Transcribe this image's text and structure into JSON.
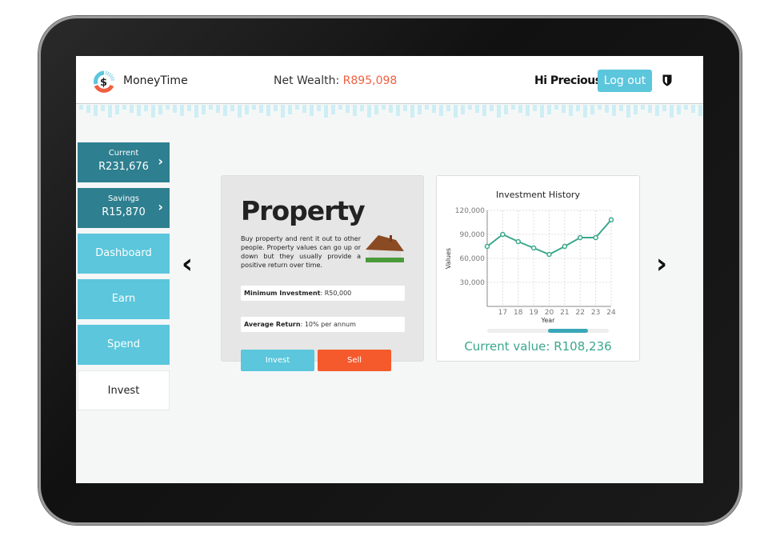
{
  "header": {
    "brand": "MoneyTime",
    "net_wealth_label": "Net Wealth: ",
    "net_wealth_value": "R895,098",
    "greeting": "Hi Precious!",
    "logout": "Log out"
  },
  "sidebar": {
    "accounts": [
      {
        "label": "Current",
        "value": "R231,676"
      },
      {
        "label": "Savings",
        "value": "R15,870"
      }
    ],
    "items": [
      {
        "label": "Dashboard"
      },
      {
        "label": "Earn"
      },
      {
        "label": "Spend"
      },
      {
        "label": "Invest",
        "active": true
      }
    ]
  },
  "investment": {
    "title": "Property",
    "description": "Buy property and rent it out to other people. Property values can go up or down but they usually provide a positive return over time.",
    "min_label": "Minimum Investment",
    "min_value": ": R50,000",
    "return_label": "Average Return",
    "return_value": ": 10% per annum",
    "invest": "Invest",
    "sell": "Sell"
  },
  "colors": {
    "accent": "#5bc6dc",
    "dark": "#2e7f8f",
    "sell": "#f55a2c",
    "line": "#3aa88c",
    "wealth": "#f06040"
  },
  "chart_data": {
    "type": "line",
    "title": "Investment History",
    "xlabel": "Year",
    "ylabel": "Values",
    "x": [
      16,
      17,
      18,
      19,
      20,
      21,
      22,
      23,
      24
    ],
    "x_tick_labels": [
      "17",
      "18",
      "19",
      "20",
      "21",
      "22",
      "23",
      "24"
    ],
    "values": [
      75000,
      90000,
      81000,
      73000,
      65000,
      75000,
      86000,
      86000,
      108236
    ],
    "ylim": [
      0,
      120000
    ],
    "y_ticks": [
      "30,000",
      "60,000",
      "90,000",
      "120,000"
    ],
    "grid": true,
    "scroll_position": 0.75
  },
  "current_value": "Current value: R108,236"
}
